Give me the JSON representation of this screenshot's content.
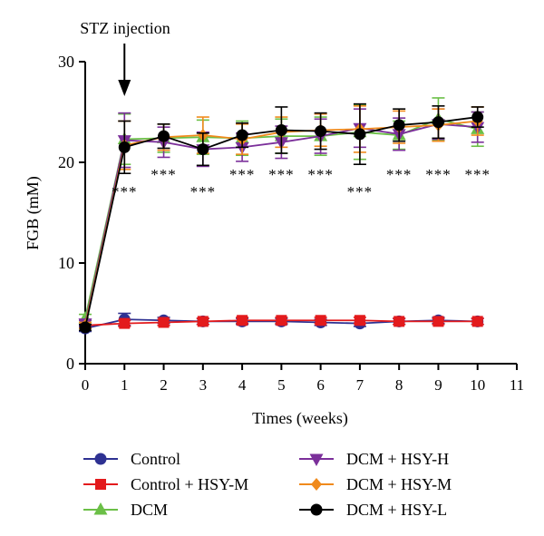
{
  "chart_data": {
    "type": "line",
    "title": "",
    "xlabel": "Times (weeks)",
    "ylabel": "FGB (mM)",
    "xlim": [
      0,
      11
    ],
    "ylim": [
      0,
      30
    ],
    "x_ticks": [
      0,
      1,
      2,
      3,
      4,
      5,
      6,
      7,
      8,
      9,
      10,
      11
    ],
    "y_ticks": [
      0,
      10,
      20,
      30
    ],
    "grid": false,
    "legend_position": "bottom",
    "annotation": {
      "text": "STZ injection",
      "x": 1,
      "arrow": true
    },
    "significance_marks": [
      {
        "x": 1,
        "label": "***",
        "side": "below"
      },
      {
        "x": 2,
        "label": "***",
        "side": "below"
      },
      {
        "x": 3,
        "label": "***",
        "side": "below"
      },
      {
        "x": 4,
        "label": "***",
        "side": "below"
      },
      {
        "x": 5,
        "label": "***",
        "side": "below"
      },
      {
        "x": 6,
        "label": "***",
        "side": "below"
      },
      {
        "x": 7,
        "label": "***",
        "side": "below"
      },
      {
        "x": 8,
        "label": "***",
        "side": "below"
      },
      {
        "x": 9,
        "label": "***",
        "side": "below"
      },
      {
        "x": 10,
        "label": "***",
        "side": "below"
      }
    ],
    "x": [
      0,
      1,
      2,
      3,
      4,
      5,
      6,
      7,
      8,
      9,
      10
    ],
    "series": [
      {
        "name": "Control",
        "color": "#2e3192",
        "marker": "circle",
        "values": [
          3.5,
          4.4,
          4.3,
          4.2,
          4.2,
          4.2,
          4.1,
          4.0,
          4.2,
          4.3,
          4.2
        ],
        "errors": [
          0.3,
          0.6,
          0.3,
          0.3,
          0.3,
          0.3,
          0.3,
          0.3,
          0.3,
          0.3,
          0.3
        ]
      },
      {
        "name": "Control + HSY-M",
        "color": "#e31a1c",
        "marker": "square",
        "values": [
          3.8,
          4.0,
          4.1,
          4.2,
          4.3,
          4.3,
          4.3,
          4.3,
          4.2,
          4.2,
          4.2
        ],
        "errors": [
          0.3,
          0.3,
          0.3,
          0.3,
          0.3,
          0.3,
          0.3,
          0.3,
          0.3,
          0.3,
          0.3
        ]
      },
      {
        "name": "DCM",
        "color": "#6bbf47",
        "marker": "triangle-up",
        "values": [
          4.5,
          22.3,
          22.4,
          22.5,
          22.4,
          22.6,
          22.6,
          23.0,
          22.7,
          24.3,
          23.3
        ],
        "errors": [
          0.4,
          2.5,
          1.4,
          1.7,
          1.7,
          1.7,
          1.9,
          2.7,
          1.4,
          2.1,
          1.7
        ]
      },
      {
        "name": "DCM + HSY-H",
        "color": "#7b2f9a",
        "marker": "triangle-down",
        "values": [
          4.0,
          22.2,
          22.0,
          21.3,
          21.5,
          22.0,
          22.6,
          23.4,
          22.8,
          23.8,
          23.5
        ],
        "errors": [
          0.3,
          2.7,
          1.5,
          1.7,
          1.4,
          1.6,
          1.7,
          1.9,
          1.6,
          1.5,
          1.5
        ]
      },
      {
        "name": "DCM + HSY-M",
        "color": "#f08a1c",
        "marker": "diamond",
        "values": [
          3.8,
          21.7,
          22.5,
          22.7,
          22.3,
          23.0,
          23.2,
          23.3,
          23.5,
          23.7,
          24.1
        ],
        "errors": [
          0.3,
          2.4,
          1.3,
          1.8,
          1.5,
          1.5,
          1.6,
          2.3,
          1.6,
          1.6,
          1.4
        ]
      },
      {
        "name": "DCM + HSY-L",
        "color": "#000000",
        "marker": "circle",
        "values": [
          3.6,
          21.5,
          22.6,
          21.3,
          22.7,
          23.2,
          23.1,
          22.8,
          23.7,
          24.0,
          24.5
        ],
        "errors": [
          0.3,
          2.6,
          1.2,
          1.6,
          1.2,
          2.3,
          1.8,
          3.0,
          1.6,
          1.6,
          1.0
        ]
      }
    ]
  }
}
